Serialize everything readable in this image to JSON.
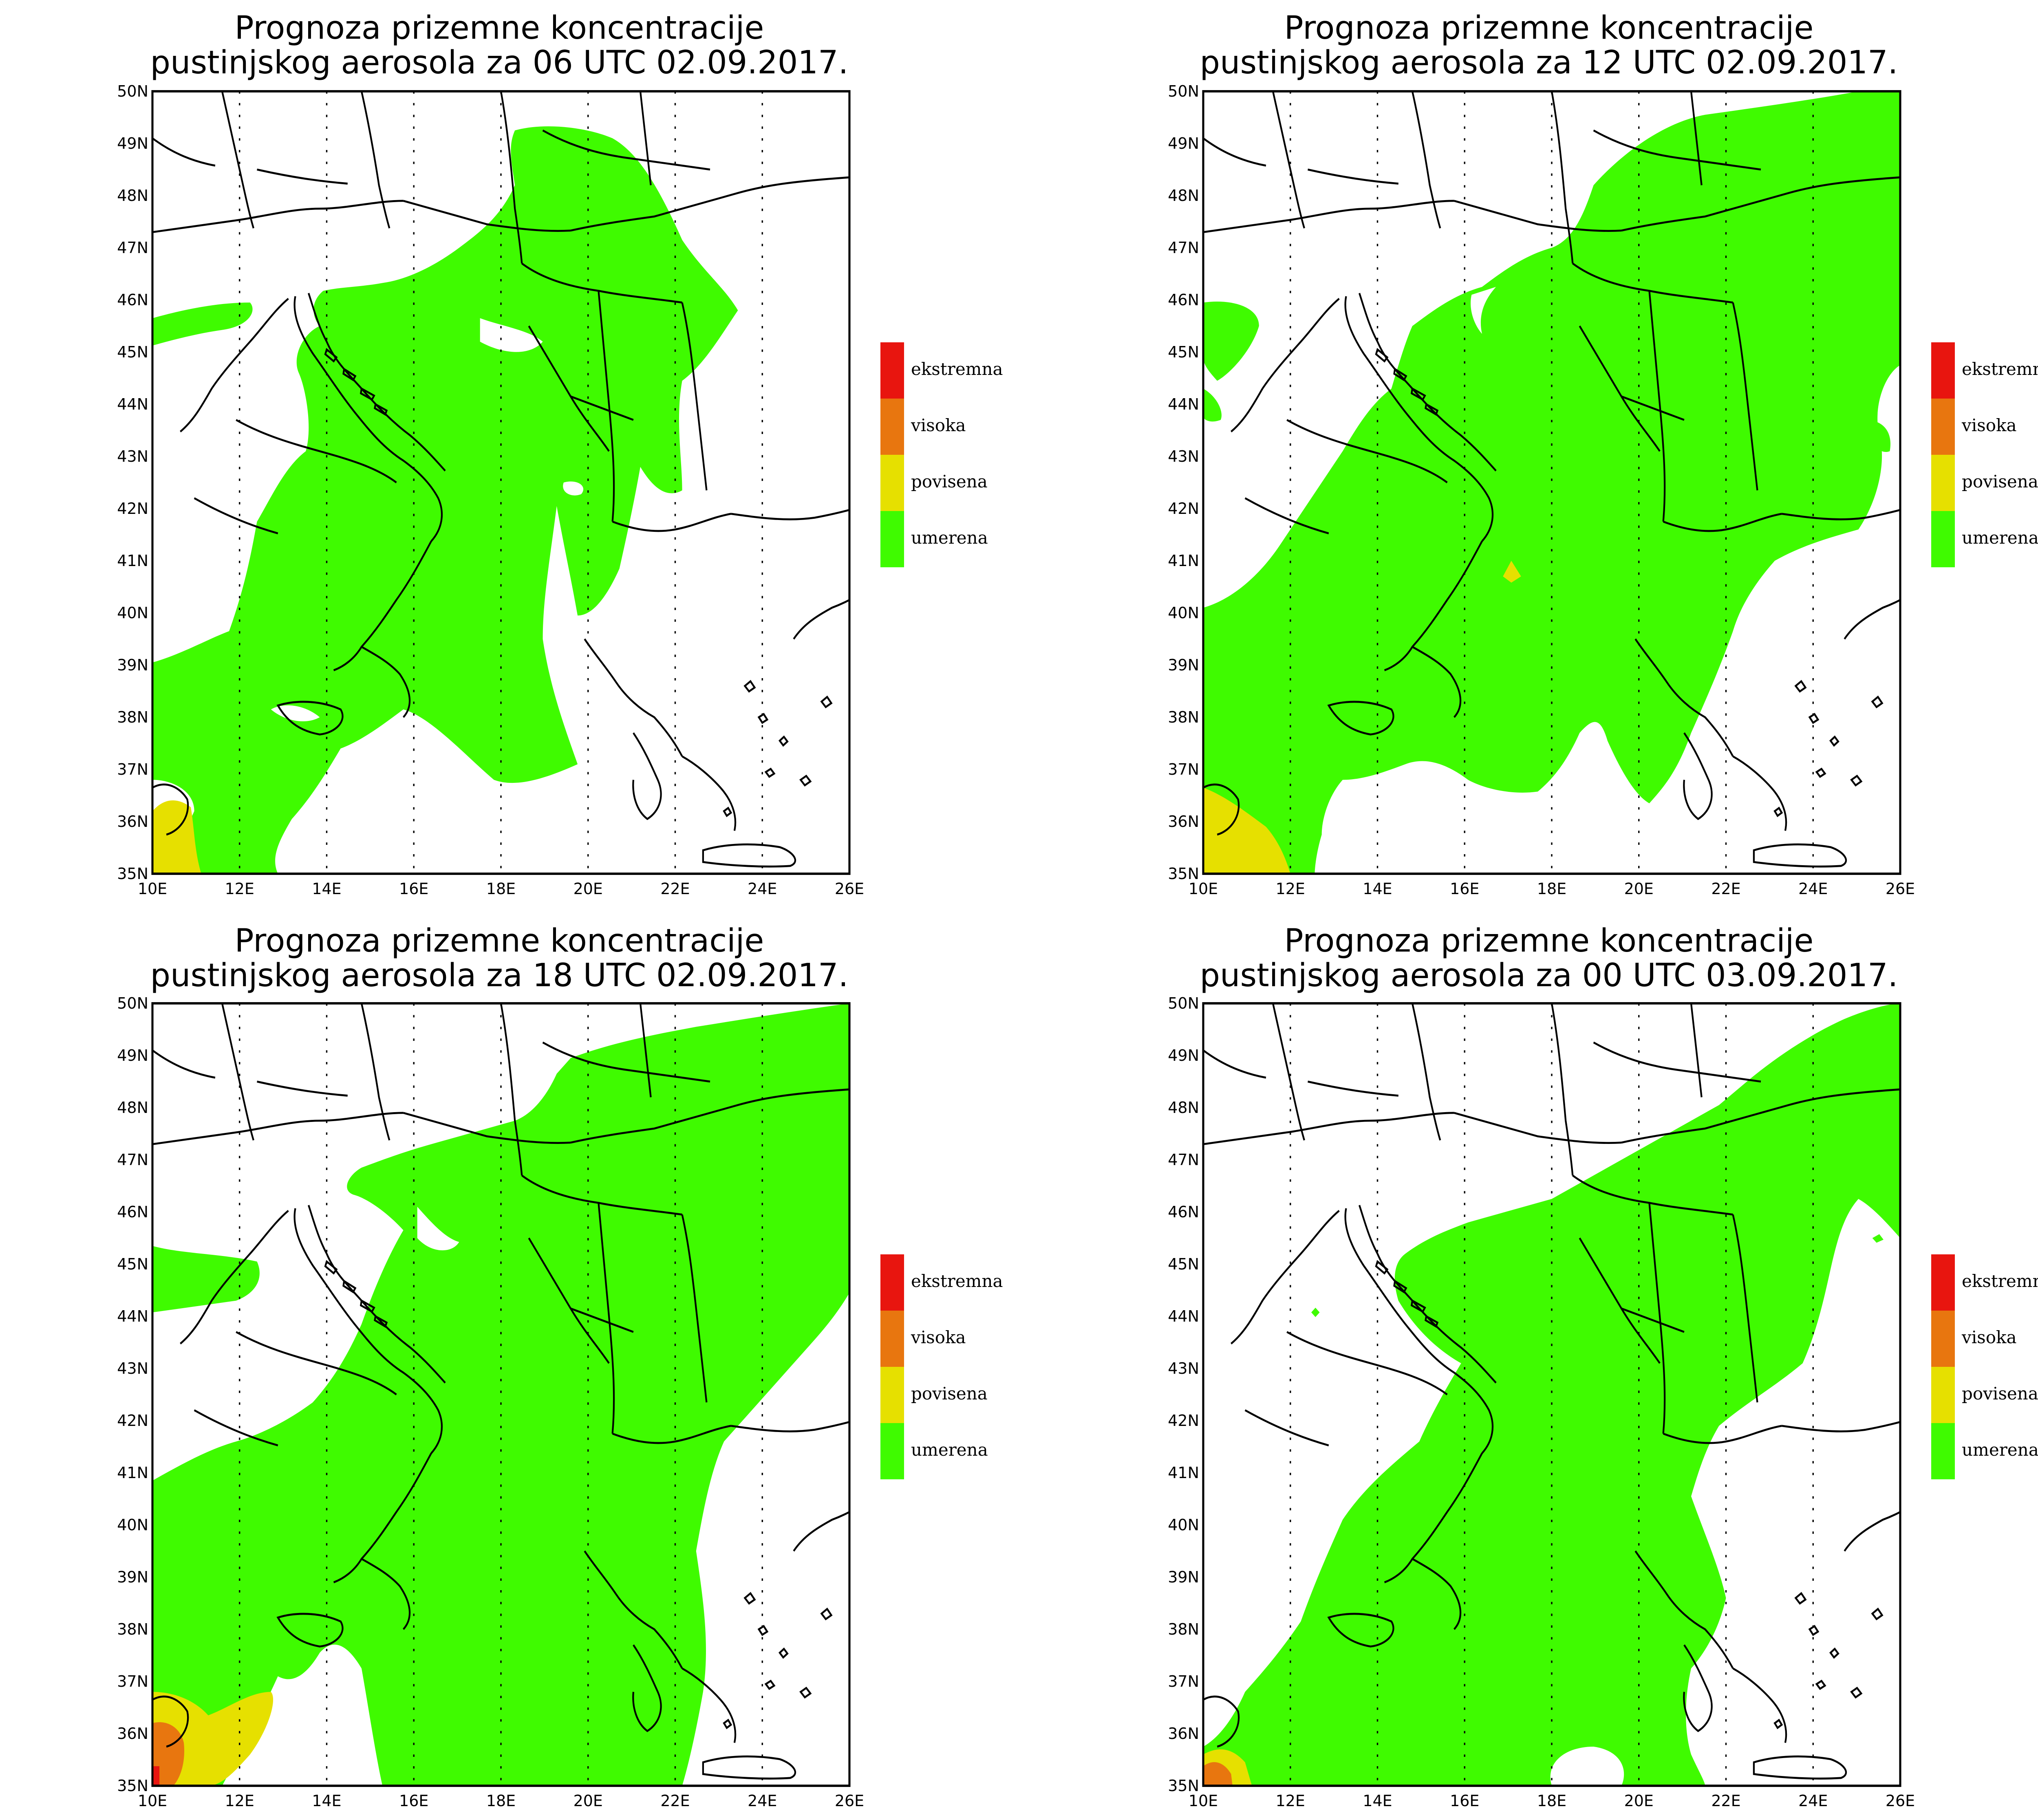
{
  "panels": [
    {
      "title_line1": "Prognoza prizemne koncentracije",
      "title_line2": "pustinjskog aerosola za 06 UTC 02.09.2017."
    },
    {
      "title_line1": "Prognoza prizemne koncentracije",
      "title_line2": "pustinjskog aerosola za 12 UTC 02.09.2017."
    },
    {
      "title_line1": "Prognoza prizemne koncentracije",
      "title_line2": "pustinjskog aerosola za 18 UTC 02.09.2017."
    },
    {
      "title_line1": "Prognoza prizemne koncentracije",
      "title_line2": "pustinjskog aerosola za 00 UTC 03.09.2017."
    }
  ],
  "axes": {
    "lon_labels": [
      "10E",
      "12E",
      "14E",
      "16E",
      "18E",
      "20E",
      "22E",
      "24E",
      "26E"
    ],
    "lat_labels": [
      "35N",
      "36N",
      "37N",
      "38N",
      "39N",
      "40N",
      "41N",
      "42N",
      "43N",
      "44N",
      "45N",
      "46N",
      "47N",
      "48N",
      "49N",
      "50N"
    ]
  },
  "legend": [
    {
      "label": "ekstremna",
      "color": "#e8150f"
    },
    {
      "label": "visoka",
      "color": "#e8760f"
    },
    {
      "label": "povisena",
      "color": "#e6e000"
    },
    {
      "label": "umerena",
      "color": "#3ffb00"
    }
  ],
  "colors": {
    "land_line": "#000000",
    "background": "#ffffff"
  }
}
